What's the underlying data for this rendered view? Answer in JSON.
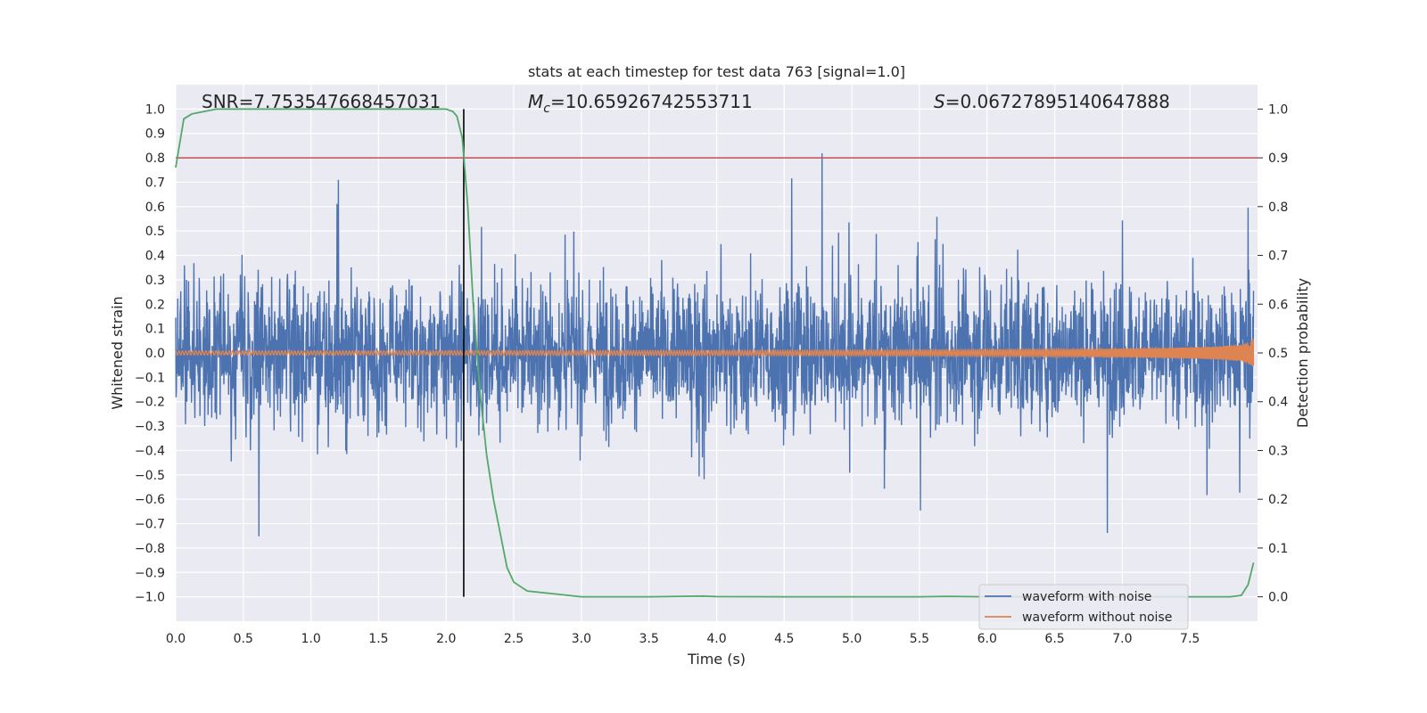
{
  "chart_data": {
    "type": "line",
    "title": "stats at each timestep for test data 763 [signal=1.0]",
    "xlabel": "Time (s)",
    "ylabel": "Whitened strain",
    "y2label": "Detection probability",
    "xlim": [
      0.0,
      8.0
    ],
    "ylim": [
      -1.1,
      1.1
    ],
    "y2lim": [
      -0.05,
      1.05
    ],
    "xticks": [
      "0.0",
      "0.5",
      "1.0",
      "1.5",
      "2.0",
      "2.5",
      "3.0",
      "3.5",
      "4.0",
      "4.5",
      "5.0",
      "5.5",
      "6.0",
      "6.5",
      "7.0",
      "7.5"
    ],
    "yticks": [
      "1.0",
      "0.9",
      "0.8",
      "0.7",
      "0.6",
      "0.5",
      "0.4",
      "0.3",
      "0.2",
      "0.1",
      "0.0",
      "−0.1",
      "−0.2",
      "−0.3",
      "−0.4",
      "−0.5",
      "−0.6",
      "−0.7",
      "−0.8",
      "−0.9",
      "−1.0"
    ],
    "y2ticks": [
      "1.0",
      "0.9",
      "0.8",
      "0.7",
      "0.6",
      "0.5",
      "0.4",
      "0.3",
      "0.2",
      "0.1",
      "0.0"
    ],
    "grid": true,
    "legend_position": "bottom-right",
    "annotations": {
      "snr_prefix": "SNR",
      "snr": "7.753547668457031",
      "mc_symbol": "M",
      "mc_sub": "c",
      "mc": "10.65926742553711",
      "s_symbol": "S",
      "s": "0.06727895140647888"
    },
    "threshold": {
      "y2": 0.9,
      "color": "#c44e52"
    },
    "vertical_marker": {
      "x": 2.13,
      "color": "#000000"
    },
    "series": [
      {
        "name": "waveform with noise",
        "color": "#4c72b0",
        "axis": "left",
        "description": "noisy whitened strain, amplitude mostly within ±0.6, spikes to about ±1.0"
      },
      {
        "name": "waveform without noise",
        "color": "#dd8452",
        "axis": "left",
        "description": "chirp signal, amplitude growing from about 0.01 to about 0.3 near t=7.95"
      },
      {
        "name": "detection probability",
        "color": "#55a868",
        "axis": "right",
        "x": [
          0.0,
          0.06,
          0.12,
          0.3,
          0.6,
          1.0,
          1.5,
          1.9,
          2.0,
          2.05,
          2.08,
          2.12,
          2.16,
          2.2,
          2.25,
          2.3,
          2.35,
          2.4,
          2.45,
          2.5,
          2.6,
          3.0,
          3.5,
          3.9,
          4.0,
          4.5,
          5.0,
          5.5,
          5.7,
          6.0,
          6.5,
          7.0,
          7.5,
          7.8,
          7.88,
          7.93,
          7.97
        ],
        "y": [
          0.88,
          0.98,
          0.99,
          1.0,
          1.0,
          1.0,
          1.0,
          1.0,
          1.0,
          0.995,
          0.985,
          0.94,
          0.8,
          0.6,
          0.42,
          0.29,
          0.2,
          0.13,
          0.06,
          0.03,
          0.012,
          0.0,
          0.0,
          0.0015,
          0.0005,
          0.0,
          0.0,
          0.0,
          0.001,
          0.0,
          0.0,
          0.0,
          0.0,
          0.0,
          0.003,
          0.025,
          0.07
        ]
      }
    ]
  }
}
